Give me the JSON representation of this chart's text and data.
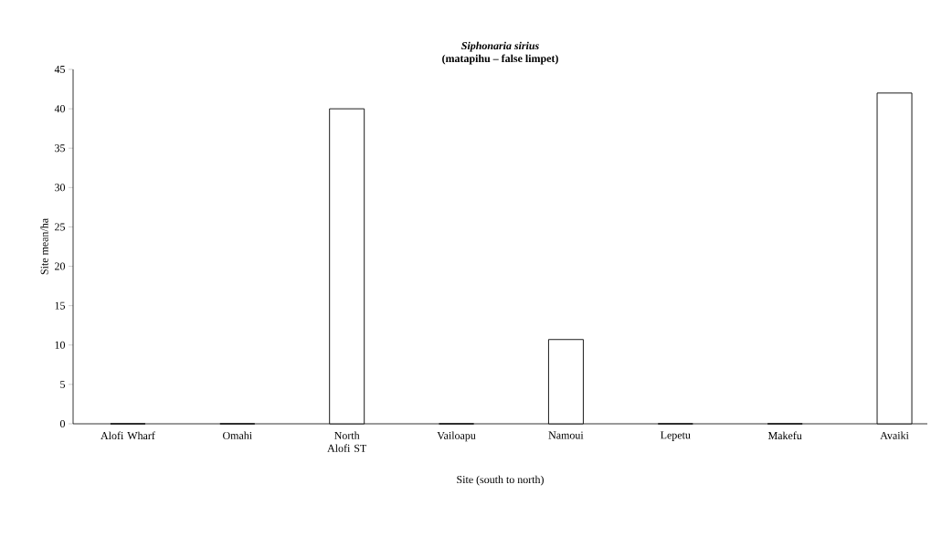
{
  "chart_data": {
    "type": "bar",
    "title": "Siphonaria sirius",
    "subtitle": "(matapihu – false limpet)",
    "xlabel": "Site (south to north)",
    "ylabel": "Site mean/ha",
    "categories": [
      "Alofi Wharf",
      "Omahi",
      "North Alofi ST",
      "Vailoapu",
      "Namoui",
      "Lepetu",
      "Makefu",
      "Avaiki"
    ],
    "values": [
      0,
      0,
      40,
      0,
      10.7,
      0,
      0,
      42
    ],
    "color": "#ffffff",
    "ylim": [
      0,
      45
    ],
    "yticks": [
      0,
      5,
      10,
      15,
      20,
      25,
      30,
      35,
      40,
      45
    ],
    "grid": false
  }
}
